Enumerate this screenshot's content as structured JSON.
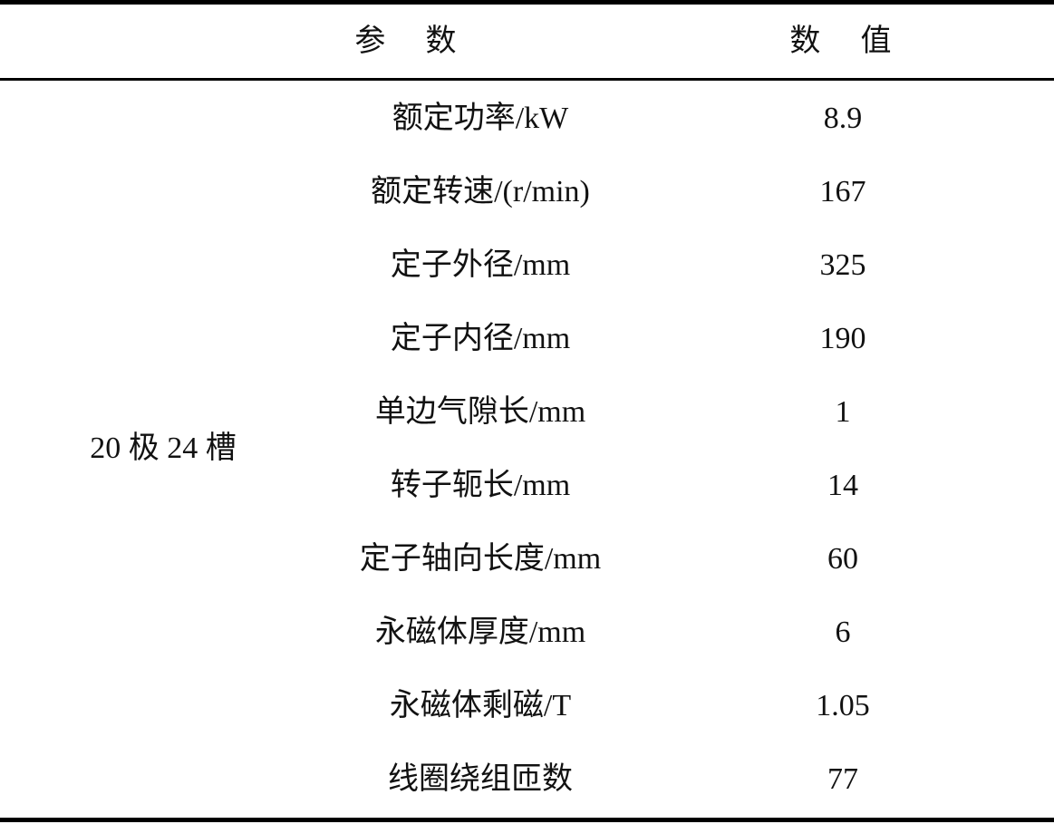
{
  "header": {
    "param": "参　数",
    "value": "数　值"
  },
  "group_label": "20 极 24 槽",
  "rows": [
    {
      "param": "额定功率/kW",
      "value": "8.9"
    },
    {
      "param": "额定转速/(r/min)",
      "value": "167"
    },
    {
      "param": "定子外径/mm",
      "value": "325"
    },
    {
      "param": "定子内径/mm",
      "value": "190"
    },
    {
      "param": "单边气隙长/mm",
      "value": "1"
    },
    {
      "param": "转子轭长/mm",
      "value": "14"
    },
    {
      "param": "定子轴向长度/mm",
      "value": "60"
    },
    {
      "param": "永磁体厚度/mm",
      "value": "6"
    },
    {
      "param": "永磁体剩磁/T",
      "value": "1.05"
    },
    {
      "param": "线圈绕组匝数",
      "value": "77"
    }
  ]
}
